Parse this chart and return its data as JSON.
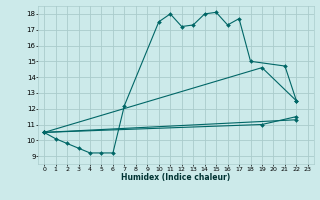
{
  "title": "",
  "xlabel": "Humidex (Indice chaleur)",
  "ylabel": "",
  "bg_color": "#cceaea",
  "grid_color": "#aacccc",
  "line_color": "#006666",
  "xlim": [
    -0.5,
    23.5
  ],
  "ylim": [
    8.5,
    18.5
  ],
  "xticks": [
    0,
    1,
    2,
    3,
    4,
    5,
    6,
    7,
    8,
    9,
    10,
    11,
    12,
    13,
    14,
    15,
    16,
    17,
    18,
    19,
    20,
    21,
    22,
    23
  ],
  "yticks": [
    9,
    10,
    11,
    12,
    13,
    14,
    15,
    16,
    17,
    18
  ],
  "series": [
    {
      "x": [
        0,
        1,
        2,
        3,
        4,
        5,
        6,
        7,
        10,
        11,
        12,
        13,
        14,
        15,
        16,
        17,
        18,
        21,
        22
      ],
      "y": [
        10.5,
        10.1,
        9.8,
        9.5,
        9.2,
        9.2,
        9.2,
        12.2,
        17.5,
        18.0,
        17.2,
        17.3,
        18.0,
        18.1,
        17.3,
        17.7,
        15.0,
        14.7,
        12.5
      ]
    },
    {
      "x": [
        0,
        22
      ],
      "y": [
        10.5,
        11.3
      ]
    },
    {
      "x": [
        0,
        19,
        22
      ],
      "y": [
        10.5,
        11.0,
        11.5
      ]
    },
    {
      "x": [
        0,
        19,
        22
      ],
      "y": [
        10.5,
        14.6,
        12.5
      ]
    }
  ]
}
